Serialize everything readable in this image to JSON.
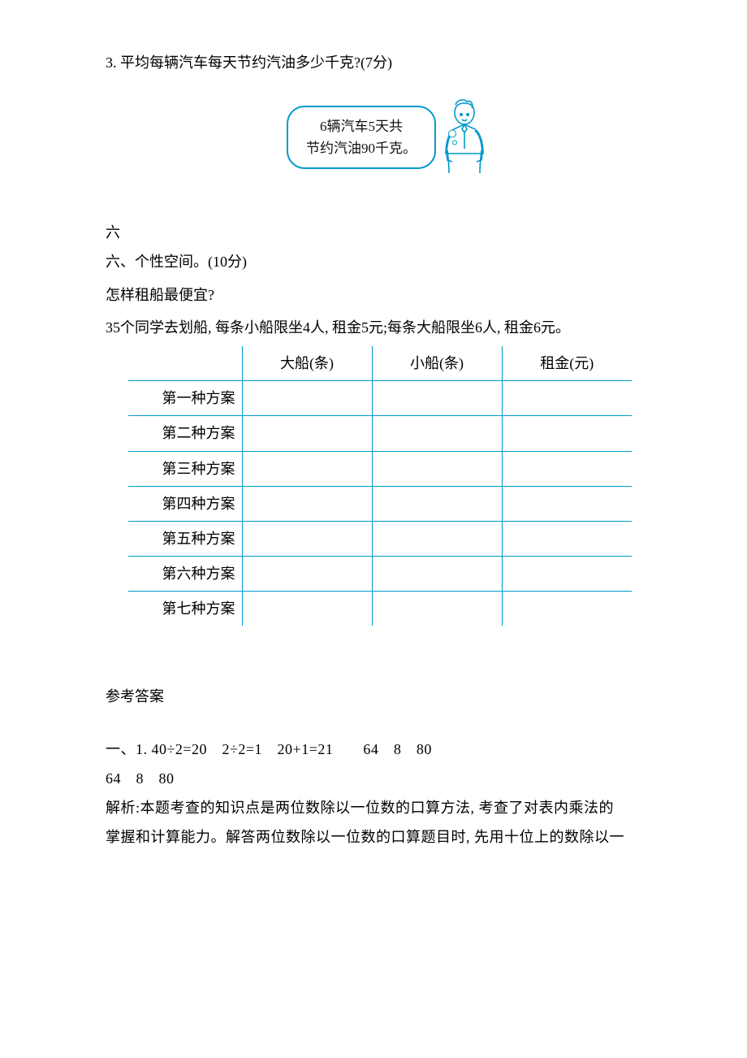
{
  "q3": {
    "text": "3. 平均每辆汽车每天节约汽油多少千克?(7分)",
    "bubble_line1": "6辆汽车5天共",
    "bubble_line2": "节约汽油90千克。",
    "stroke_color": "#0099cc"
  },
  "section6": {
    "single": "六",
    "heading": "六、个性空间。(10分)",
    "line1": "怎样租船最便宜?",
    "line2": "35个同学去划船, 每条小船限坐4人, 租金5元;每条大船限坐6人, 租金6元。"
  },
  "table": {
    "border_color": "#0099cc",
    "headers": [
      "",
      "大船(条)",
      "小船(条)",
      "租金(元)"
    ],
    "rows": [
      {
        "label": "第一种方案",
        "cells": [
          "",
          "",
          ""
        ]
      },
      {
        "label": "第二种方案",
        "cells": [
          "",
          "",
          ""
        ]
      },
      {
        "label": "第三种方案",
        "cells": [
          "",
          "",
          ""
        ]
      },
      {
        "label": "第四种方案",
        "cells": [
          "",
          "",
          ""
        ]
      },
      {
        "label": "第五种方案",
        "cells": [
          "",
          "",
          ""
        ]
      },
      {
        "label": "第六种方案",
        "cells": [
          "",
          "",
          ""
        ]
      },
      {
        "label": "第七种方案",
        "cells": [
          "",
          "",
          ""
        ]
      }
    ]
  },
  "answers": {
    "title": "参考答案",
    "line1": "一、1. 40÷2=20　2÷2=1　20+1=21　　64　8　80",
    "line2": "64　8　80",
    "line3": "解析:本题考查的知识点是两位数除以一位数的口算方法, 考查了对表内乘法的",
    "line4": "掌握和计算能力。解答两位数除以一位数的口算题目时, 先用十位上的数除以一"
  }
}
